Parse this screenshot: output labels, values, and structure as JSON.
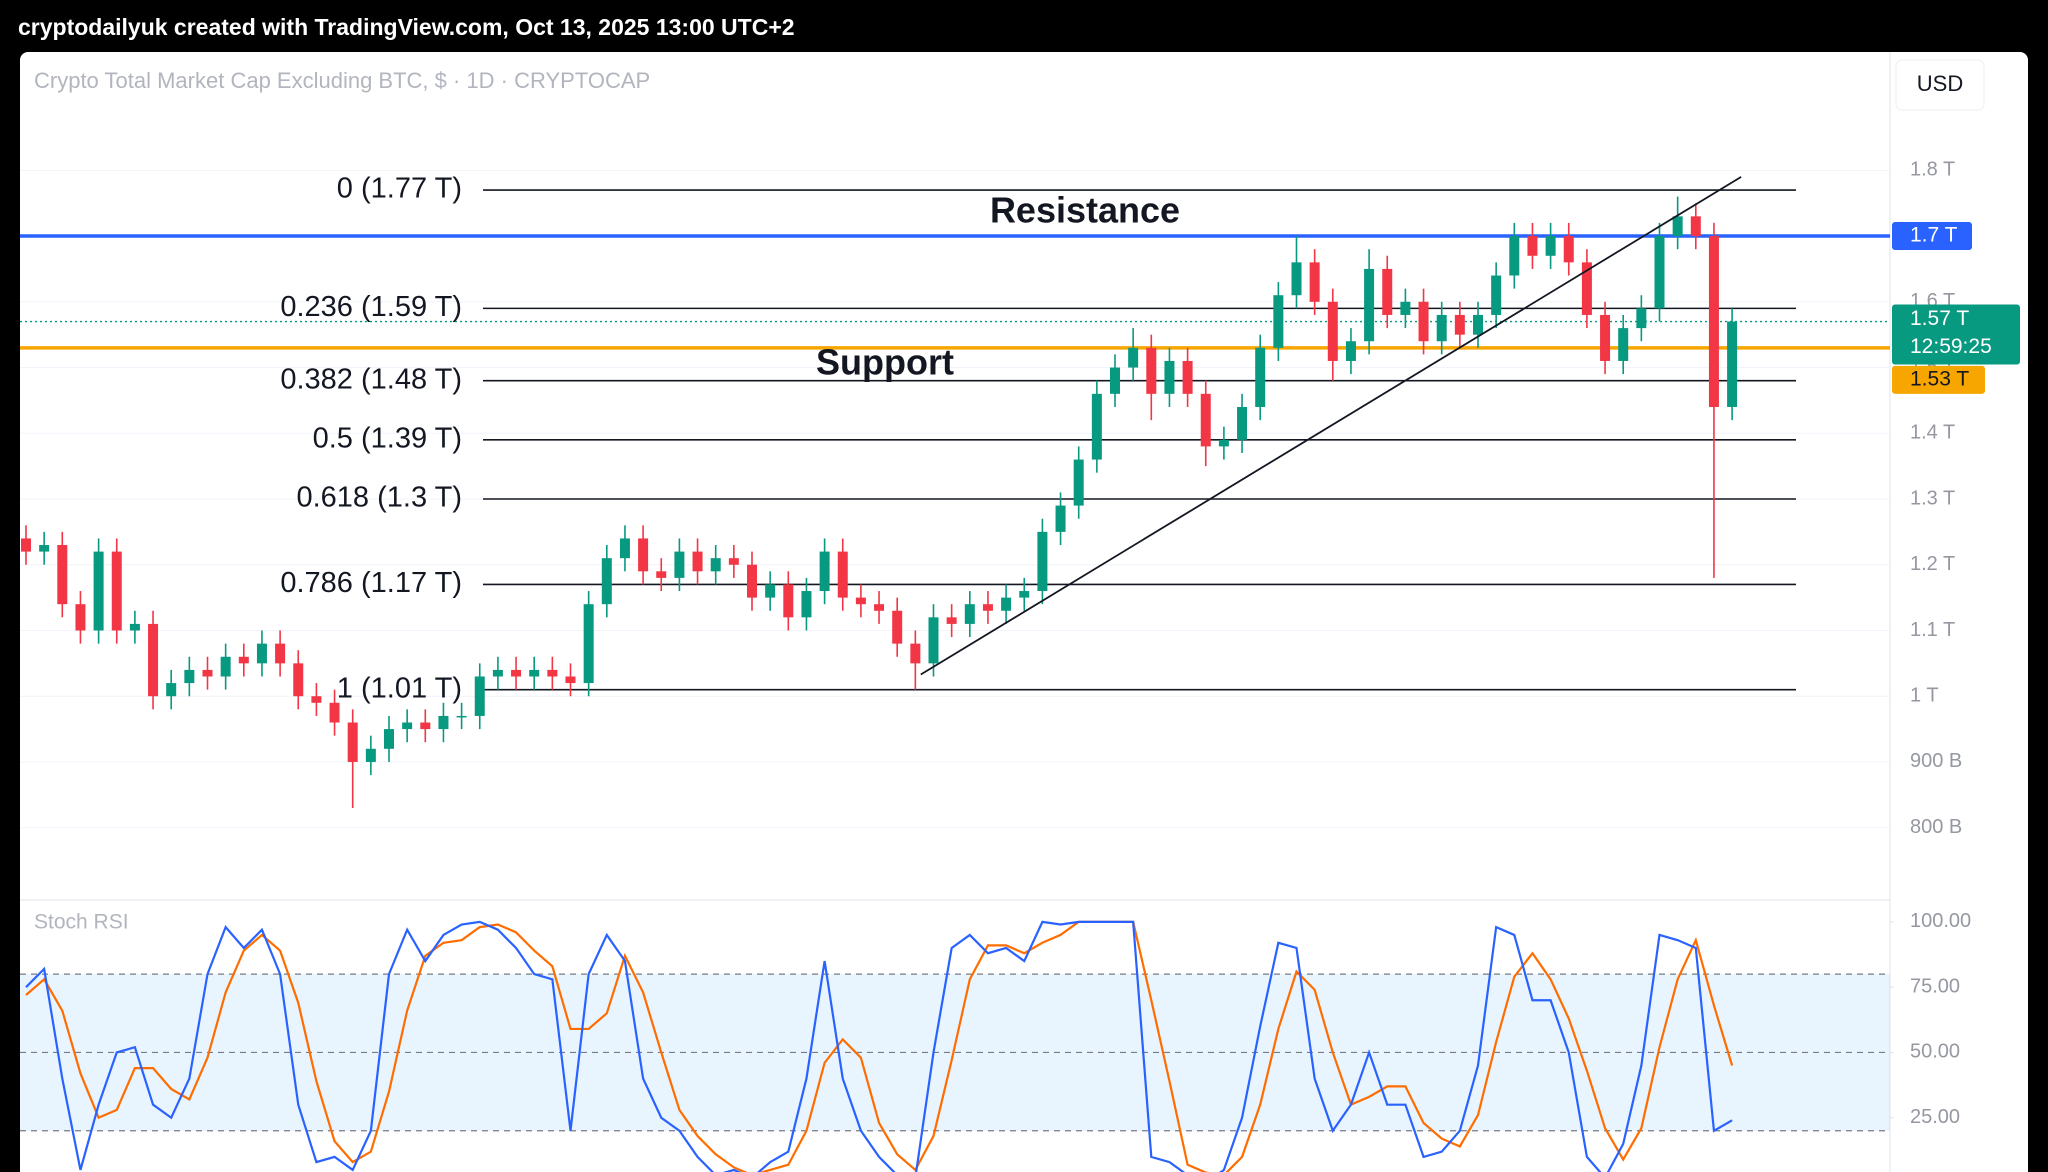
{
  "header": "cryptodailyuk created with TradingView.com, Oct 13, 2025 13:00 UTC+2",
  "currency": "USD",
  "chart_data": [
    {
      "type": "candlestick",
      "title": "Crypto Total Market Cap Excluding BTC, $ · 1D · CRYPTOCAP",
      "up_color": "#089981",
      "down_color": "#f23645",
      "open": [
        1.24,
        1.22,
        1.23,
        1.14,
        1.1,
        1.22,
        1.1,
        1.11,
        1.0,
        1.02,
        1.04,
        1.03,
        1.06,
        1.05,
        1.08,
        1.05,
        1.0,
        0.99,
        0.96,
        0.9,
        0.92,
        0.95,
        0.96,
        0.95,
        0.97,
        0.97,
        1.03,
        1.04,
        1.03,
        1.04,
        1.03,
        1.02,
        1.14,
        1.21,
        1.24,
        1.19,
        1.18,
        1.22,
        1.19,
        1.21,
        1.2,
        1.15,
        1.17,
        1.12,
        1.16,
        1.22,
        1.15,
        1.14,
        1.13,
        1.08,
        1.05,
        1.12,
        1.11,
        1.14,
        1.13,
        1.15,
        1.16,
        1.25,
        1.29,
        1.36,
        1.46,
        1.5,
        1.53,
        1.46,
        1.51,
        1.46,
        1.38,
        1.39,
        1.44,
        1.53,
        1.61,
        1.66,
        1.6,
        1.51,
        1.54,
        1.65,
        1.58,
        1.6,
        1.54,
        1.58,
        1.55,
        1.58,
        1.64,
        1.7,
        1.67,
        1.7,
        1.66,
        1.58,
        1.51,
        1.56,
        1.59,
        1.7,
        1.73,
        1.7,
        1.44
      ],
      "high": [
        1.26,
        1.25,
        1.25,
        1.16,
        1.24,
        1.24,
        1.13,
        1.13,
        1.04,
        1.06,
        1.06,
        1.08,
        1.08,
        1.1,
        1.1,
        1.07,
        1.02,
        1.01,
        0.98,
        0.94,
        0.97,
        0.98,
        0.98,
        0.99,
        0.99,
        1.05,
        1.06,
        1.06,
        1.06,
        1.06,
        1.05,
        1.16,
        1.23,
        1.26,
        1.26,
        1.21,
        1.24,
        1.24,
        1.23,
        1.23,
        1.22,
        1.19,
        1.19,
        1.18,
        1.24,
        1.24,
        1.17,
        1.16,
        1.15,
        1.1,
        1.14,
        1.14,
        1.16,
        1.16,
        1.17,
        1.18,
        1.27,
        1.31,
        1.38,
        1.48,
        1.52,
        1.56,
        1.55,
        1.53,
        1.53,
        1.48,
        1.41,
        1.46,
        1.55,
        1.63,
        1.7,
        1.68,
        1.62,
        1.56,
        1.68,
        1.67,
        1.62,
        1.62,
        1.6,
        1.6,
        1.6,
        1.66,
        1.72,
        1.72,
        1.72,
        1.72,
        1.68,
        1.6,
        1.58,
        1.61,
        1.72,
        1.76,
        1.75,
        1.72,
        1.59
      ],
      "low": [
        1.2,
        1.2,
        1.12,
        1.08,
        1.08,
        1.08,
        1.08,
        0.98,
        0.98,
        1.0,
        1.01,
        1.01,
        1.03,
        1.03,
        1.03,
        0.98,
        0.97,
        0.94,
        0.83,
        0.88,
        0.9,
        0.93,
        0.93,
        0.93,
        0.95,
        0.95,
        1.01,
        1.01,
        1.01,
        1.01,
        1.0,
        1.0,
        1.12,
        1.19,
        1.17,
        1.16,
        1.16,
        1.17,
        1.17,
        1.18,
        1.13,
        1.13,
        1.1,
        1.1,
        1.14,
        1.13,
        1.12,
        1.11,
        1.06,
        1.01,
        1.03,
        1.09,
        1.09,
        1.11,
        1.11,
        1.13,
        1.14,
        1.23,
        1.27,
        1.34,
        1.44,
        1.48,
        1.42,
        1.44,
        1.44,
        1.35,
        1.36,
        1.37,
        1.42,
        1.51,
        1.59,
        1.58,
        1.48,
        1.49,
        1.52,
        1.56,
        1.56,
        1.52,
        1.52,
        1.53,
        1.53,
        1.56,
        1.62,
        1.65,
        1.65,
        1.64,
        1.56,
        1.49,
        1.49,
        1.54,
        1.57,
        1.68,
        1.68,
        1.18,
        1.42
      ],
      "close": [
        1.22,
        1.23,
        1.14,
        1.1,
        1.22,
        1.1,
        1.11,
        1.0,
        1.02,
        1.04,
        1.03,
        1.06,
        1.05,
        1.08,
        1.05,
        1.0,
        0.99,
        0.96,
        0.9,
        0.92,
        0.95,
        0.96,
        0.95,
        0.97,
        0.97,
        1.03,
        1.04,
        1.03,
        1.04,
        1.03,
        1.02,
        1.14,
        1.21,
        1.24,
        1.19,
        1.18,
        1.22,
        1.19,
        1.21,
        1.2,
        1.15,
        1.17,
        1.12,
        1.16,
        1.22,
        1.15,
        1.14,
        1.13,
        1.08,
        1.05,
        1.12,
        1.11,
        1.14,
        1.13,
        1.15,
        1.16,
        1.25,
        1.29,
        1.36,
        1.46,
        1.5,
        1.53,
        1.46,
        1.51,
        1.46,
        1.38,
        1.39,
        1.44,
        1.53,
        1.61,
        1.66,
        1.6,
        1.51,
        1.54,
        1.65,
        1.58,
        1.6,
        1.54,
        1.58,
        1.55,
        1.58,
        1.64,
        1.7,
        1.67,
        1.7,
        1.66,
        1.58,
        1.51,
        1.56,
        1.59,
        1.7,
        1.73,
        1.7,
        1.44,
        1.57
      ],
      "ylim": [
        0.69,
        1.98
      ],
      "yticks": [
        {
          "value": 1.8,
          "label": "1.8 T"
        },
        {
          "value": 1.7,
          "label": "1.7 T"
        },
        {
          "value": 1.6,
          "label": "1.6 T"
        },
        {
          "value": 1.5,
          "label": "1.5 T"
        },
        {
          "value": 1.4,
          "label": "1.4 T"
        },
        {
          "value": 1.3,
          "label": "1.3 T"
        },
        {
          "value": 1.2,
          "label": "1.2 T"
        },
        {
          "value": 1.1,
          "label": "1.1 T"
        },
        {
          "value": 1,
          "label": "1 T"
        },
        {
          "value": 0.9,
          "label": "900 B"
        },
        {
          "value": 0.8,
          "label": "800 B"
        }
      ],
      "grid": true,
      "fib": [
        {
          "value": 1.77,
          "label": "0 (1.77 T)"
        },
        {
          "value": 1.59,
          "label": "0.236 (1.59 T)"
        },
        {
          "value": 1.48,
          "label": "0.382 (1.48 T)"
        },
        {
          "value": 1.39,
          "label": "0.5 (1.39 T)"
        },
        {
          "value": 1.3,
          "label": "0.618 (1.3 T)"
        },
        {
          "value": 1.17,
          "label": "0.786 (1.17 T)"
        },
        {
          "value": 1.01,
          "label": "1 (1.01 T)"
        }
      ],
      "trendline": {
        "x": [
          49.3,
          94.5
        ],
        "y": [
          1.033,
          1.79
        ]
      },
      "levels": [
        {
          "label": "Resistance",
          "value": 1.7,
          "tag": "1.7 T",
          "color": "#2962ff"
        },
        {
          "label": "Support",
          "value": 1.53,
          "tag": "1.53 T",
          "color": "#f7a600"
        }
      ],
      "last_price": {
        "value": 1.57,
        "tag": "1.57 T",
        "countdown": "12:59:25",
        "color": "#089981"
      }
    },
    {
      "type": "line",
      "title": "Stoch RSI",
      "series": [
        {
          "color": "#2962ff",
          "values": [
            75,
            82,
            40,
            5,
            30,
            50,
            52,
            30,
            25,
            40,
            80,
            98,
            90,
            97,
            80,
            30,
            8,
            10,
            5,
            20,
            80,
            97,
            85,
            95,
            99,
            100,
            97,
            90,
            80,
            78,
            20,
            80,
            95,
            85,
            40,
            25,
            20,
            10,
            3,
            5,
            2,
            8,
            12,
            40,
            85,
            40,
            20,
            10,
            3,
            2,
            50,
            90,
            95,
            88,
            90,
            85,
            100,
            99,
            100,
            100,
            100,
            100,
            10,
            8,
            3,
            0,
            5,
            25,
            60,
            92,
            90,
            40,
            20,
            30,
            50,
            30,
            30,
            10,
            12,
            20,
            45,
            98,
            95,
            70,
            70,
            50,
            10,
            2,
            15,
            45,
            95,
            93,
            90,
            20,
            24
          ]
        },
        {
          "color": "#ff6d00",
          "values": [
            72,
            78,
            66,
            42,
            25,
            28,
            44,
            44,
            36,
            32,
            48,
            73,
            89,
            95,
            89,
            69,
            39,
            16,
            8,
            12,
            35,
            66,
            87,
            92,
            93,
            98,
            99,
            96,
            89,
            83,
            59,
            59,
            65,
            87,
            73,
            50,
            28,
            18,
            11,
            6,
            3,
            5,
            7,
            20,
            46,
            55,
            48,
            23,
            11,
            5,
            18,
            47,
            78,
            91,
            91,
            88,
            92,
            95,
            100,
            100,
            100,
            100,
            70,
            39,
            7,
            4,
            3,
            10,
            30,
            59,
            81,
            74,
            50,
            30,
            33,
            37,
            37,
            23,
            17,
            14,
            26,
            54,
            79,
            88,
            78,
            63,
            43,
            21,
            9,
            21,
            52,
            78,
            93,
            68,
            45
          ]
        }
      ],
      "ylim": [
        0,
        108
      ],
      "yticks": [
        {
          "value": 100,
          "label": "100.00"
        },
        {
          "value": 75,
          "label": "75.00"
        },
        {
          "value": 50,
          "label": "50.00"
        },
        {
          "value": 25,
          "label": "25.00"
        }
      ],
      "band": [
        20,
        80
      ],
      "hlines": [
        80,
        50,
        20
      ]
    }
  ]
}
